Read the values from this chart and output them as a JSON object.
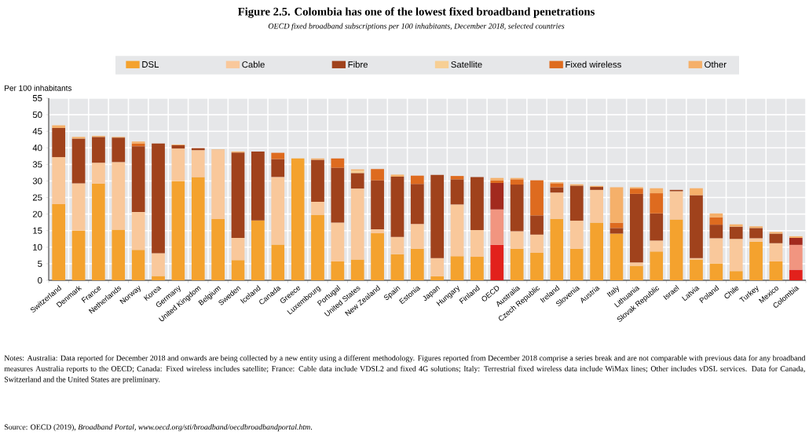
{
  "chart_data": {
    "type": "bar",
    "stacked": true,
    "title": "Figure 2.5. Colombia has one of the lowest fixed broadband penetrations",
    "subtitle": "OECD fixed broadband subscriptions per 100 inhabitants, December 2018, selected countries",
    "ylabel": "Per 100 inhabitants",
    "categories": [
      "Switzerland",
      "Denmark",
      "France",
      "Netherlands",
      "Norway",
      "Korea",
      "Germany",
      "United Kingdom",
      "Belgium",
      "Sweden",
      "Iceland",
      "Canada",
      "Greece",
      "Luxembourg",
      "Portugal",
      "United States",
      "New Zealand",
      "Spain",
      "Estonia",
      "Japan",
      "Hungary",
      "Finland",
      "OECD",
      "Australia",
      "Czech Republic",
      "Ireland",
      "Slovenia",
      "Austria",
      "Italy",
      "Lithuania",
      "Slovak Republic",
      "Israel",
      "Latvia",
      "Poland",
      "Chile",
      "Turkey",
      "Mexico",
      "Colombia"
    ],
    "series": [
      {
        "name": "DSL",
        "color": "#f4a22e",
        "values": [
          23,
          15,
          29.2,
          15.3,
          9.2,
          1.3,
          30,
          31.2,
          18.5,
          6.1,
          18.1,
          10.8,
          36.8,
          19.8,
          5.7,
          6.3,
          14.2,
          7.9,
          9.5,
          1.2,
          7.3,
          7.1,
          10.7,
          9.5,
          8.3,
          18.6,
          9.5,
          17.4,
          14.1,
          4.4,
          8.7,
          18.4,
          6.3,
          5.1,
          2.8,
          11.7,
          5.7,
          3.2
        ],
        "colors": [
          "#f4a22e",
          "#f4a22e",
          "#f4a22e",
          "#f4a22e",
          "#f4a22e",
          "#f4a22e",
          "#f4a22e",
          "#f4a22e",
          "#f4a22e",
          "#f4a22e",
          "#f4a22e",
          "#f4a22e",
          "#f4a22e",
          "#f4a22e",
          "#f4a22e",
          "#f4a22e",
          "#f4a22e",
          "#f4a22e",
          "#f4a22e",
          "#f4a22e",
          "#f4a22e",
          "#f4a22e",
          "#e2211c",
          "#f4a22e",
          "#f4a22e",
          "#f4a22e",
          "#f4a22e",
          "#f4a22e",
          "#f4a22e",
          "#f4a22e",
          "#f4a22e",
          "#f4a22e",
          "#f4a22e",
          "#f4a22e",
          "#f4a22e",
          "#f4a22e",
          "#f4a22e",
          "#e2211c"
        ]
      },
      {
        "name": "Cable",
        "color": "#f9c89b",
        "values": [
          14.2,
          14.3,
          6.3,
          20.4,
          11.4,
          6.9,
          9.8,
          8.1,
          20.8,
          6.7,
          null,
          20.4,
          null,
          3.9,
          11.7,
          21.4,
          1.2,
          5.2,
          7.5,
          5.5,
          15.6,
          8.1,
          10.7,
          5.3,
          5.5,
          7.9,
          8.5,
          9.9,
          null,
          1.0,
          3.3,
          8.5,
          0.4,
          7.6,
          9.7,
          1.0,
          5.5,
          7.5
        ],
        "colors": [
          "#f9c89b",
          "#f9c89b",
          "#f9c89b",
          "#f9c89b",
          "#f9c89b",
          "#f9c89b",
          "#f9c89b",
          "#f9c89b",
          "#f9c89b",
          "#f9c89b",
          "#f9c89b",
          "#f9c89b",
          "#f9c89b",
          "#f9c89b",
          "#f9c89b",
          "#f9c89b",
          "#f9c89b",
          "#f9c89b",
          "#f9c89b",
          "#f9c89b",
          "#f9c89b",
          "#f9c89b",
          "#f19580",
          "#f9c89b",
          "#f9c89b",
          "#f9c89b",
          "#f9c89b",
          "#f9c89b",
          "#f9c89b",
          "#f9c89b",
          "#f9c89b",
          "#f9c89b",
          "#f9c89b",
          "#f9c89b",
          "#f9c89b",
          "#f9c89b",
          "#f9c89b",
          "#f19580"
        ]
      },
      {
        "name": "Fibre",
        "color": "#a0421c",
        "values": [
          8.8,
          13.5,
          7.8,
          7.4,
          19.9,
          33.1,
          1.0,
          0.6,
          null,
          25.8,
          20.8,
          5.4,
          null,
          12.7,
          16.6,
          4.7,
          14.8,
          18.2,
          12.1,
          25.1,
          7.6,
          16.0,
          8.0,
          14.1,
          5.8,
          1.6,
          10.6,
          0.9,
          1.7,
          20.7,
          8.2,
          0.4,
          19.0,
          4.1,
          3.7,
          3.1,
          2.9,
          2.1
        ],
        "colors": [
          "#a0421c",
          "#a0421c",
          "#a0421c",
          "#a0421c",
          "#a0421c",
          "#a0421c",
          "#a0421c",
          "#a0421c",
          "#a0421c",
          "#a0421c",
          "#a0421c",
          "#a0421c",
          "#a0421c",
          "#a0421c",
          "#a0421c",
          "#a0421c",
          "#a0421c",
          "#a0421c",
          "#a0421c",
          "#a0421c",
          "#a0421c",
          "#a0421c",
          "#a22a1e",
          "#a0421c",
          "#a0421c",
          "#a0421c",
          "#a0421c",
          "#a0421c",
          "#a0421c",
          "#a0421c",
          "#a0421c",
          "#a0421c",
          "#a0421c",
          "#a0421c",
          "#a0421c",
          "#a0421c",
          "#a0421c",
          "#a22a1e"
        ]
      },
      {
        "name": "Satellite",
        "color": "#f7cf94",
        "values": [
          null,
          null,
          null,
          null,
          null,
          null,
          null,
          null,
          null,
          null,
          null,
          null,
          null,
          null,
          null,
          0.7,
          null,
          null,
          null,
          null,
          null,
          null,
          null,
          null,
          null,
          null,
          null,
          null,
          null,
          null,
          null,
          null,
          null,
          null,
          null,
          null,
          null,
          null
        ]
      },
      {
        "name": "Fixed wireless",
        "color": "#de6b1f",
        "values": [
          null,
          null,
          null,
          null,
          0.8,
          null,
          null,
          null,
          null,
          null,
          null,
          1.9,
          null,
          null,
          2.8,
          null,
          3.4,
          null,
          2.5,
          null,
          1.0,
          null,
          0.8,
          1.6,
          10.6,
          1.2,
          null,
          null,
          1.6,
          1.6,
          6.1,
          null,
          null,
          2.2,
          null,
          null,
          null,
          null
        ]
      },
      {
        "name": "Other",
        "color": "#f5b06a",
        "values": [
          0.8,
          0.5,
          0.3,
          0.2,
          0.6,
          null,
          0.2,
          null,
          0.2,
          0.3,
          null,
          null,
          null,
          0.4,
          null,
          0.4,
          null,
          0.6,
          null,
          null,
          null,
          null,
          0.7,
          0.4,
          null,
          0.3,
          0.4,
          0.3,
          10.7,
          0.4,
          1.5,
          null,
          2.1,
          1.2,
          0.7,
          0.5,
          0.5,
          0.5
        ]
      }
    ],
    "ylim": [
      0,
      55
    ],
    "yticks": [
      0,
      5,
      10,
      15,
      20,
      25,
      30,
      35,
      40,
      45,
      50,
      55
    ],
    "grid": true,
    "legend": "top",
    "annotations": [
      "Notes: Australia: Data reported for December 2018 and onwards are being collected by a new entity using a different methodology. Figures reported from December 2018 comprise a series break and are not comparable with previous data for any broadband measures Australia reports to the OECD; Canada: Fixed wireless includes satellite; France: Cable data include VDSL2 and fixed 4G solutions; Italy: Terrestrial fixed wireless data include WiMax lines; Other includes vDSL services. Data for Canada, Switzerland and the United States are preliminary.",
      "Source: OECD (2019), *Broadband Portal, www.oecd.org/sti/broadband/oecdbroadbandportal.htm*."
    ]
  }
}
